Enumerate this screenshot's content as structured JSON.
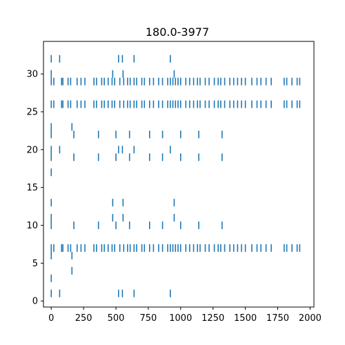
{
  "chart_data": {
    "type": "scatter",
    "marker": "vertical-line",
    "title": "180.0-3977",
    "xlabel": "",
    "ylabel": "",
    "xlim": [
      -60,
      2030
    ],
    "ylim": [
      -0.8,
      34.3
    ],
    "x_ticks": [
      0,
      250,
      500,
      750,
      1000,
      1250,
      1500,
      1750,
      2000
    ],
    "y_ticks": [
      0,
      5,
      10,
      15,
      20,
      25,
      30
    ],
    "grid": false,
    "color": "#1f77b4",
    "rows": [
      {
        "y": 32,
        "x": [
          0,
          65,
          520,
          550,
          640,
          920
        ]
      },
      {
        "y": 30,
        "x": [
          0,
          475,
          555,
          950
        ]
      },
      {
        "y": 29,
        "x": [
          0,
          20,
          80,
          90,
          130,
          150,
          200,
          230,
          260,
          330,
          350,
          390,
          410,
          440,
          470,
          490,
          530,
          560,
          590,
          610,
          640,
          660,
          700,
          720,
          760,
          790,
          830,
          860,
          900,
          920,
          940,
          960,
          980,
          1000,
          1040,
          1070,
          1100,
          1130,
          1150,
          1190,
          1220,
          1260,
          1290,
          1310,
          1340,
          1380,
          1410,
          1440,
          1470,
          1500,
          1550,
          1590,
          1620,
          1660,
          1700,
          1800,
          1820,
          1860,
          1900,
          1920
        ]
      },
      {
        "y": 26,
        "x": [
          0,
          20,
          80,
          90,
          130,
          150,
          200,
          230,
          260,
          330,
          350,
          390,
          410,
          440,
          470,
          490,
          530,
          560,
          590,
          610,
          640,
          660,
          700,
          720,
          760,
          790,
          830,
          860,
          900,
          920,
          940,
          960,
          980,
          1000,
          1040,
          1070,
          1100,
          1130,
          1150,
          1190,
          1220,
          1260,
          1290,
          1310,
          1340,
          1380,
          1410,
          1440,
          1470,
          1500,
          1550,
          1590,
          1620,
          1660,
          1700,
          1800,
          1820,
          1860,
          1900,
          1920
        ]
      },
      {
        "y": 23,
        "x": [
          0,
          160
        ]
      },
      {
        "y": 22,
        "x": [
          0,
          175,
          365,
          500,
          605,
          760,
          860,
          1000,
          1140,
          1320
        ]
      },
      {
        "y": 20,
        "x": [
          0,
          65,
          520,
          550,
          640,
          920
        ]
      },
      {
        "y": 19,
        "x": [
          0,
          175,
          365,
          500,
          605,
          760,
          860,
          1000,
          1140,
          1320
        ]
      },
      {
        "y": 17,
        "x": [
          0
        ]
      },
      {
        "y": 13,
        "x": [
          0,
          475,
          555,
          950
        ]
      },
      {
        "y": 11,
        "x": [
          0,
          475,
          555,
          950
        ]
      },
      {
        "y": 10,
        "x": [
          0,
          175,
          365,
          500,
          605,
          760,
          860,
          1000,
          1140,
          1320
        ]
      },
      {
        "y": 7,
        "x": [
          0,
          20,
          80,
          90,
          130,
          150,
          200,
          230,
          260,
          330,
          350,
          390,
          410,
          440,
          470,
          490,
          530,
          560,
          590,
          610,
          640,
          660,
          700,
          720,
          760,
          790,
          830,
          860,
          900,
          920,
          940,
          960,
          980,
          1000,
          1040,
          1070,
          1100,
          1130,
          1150,
          1190,
          1220,
          1260,
          1290,
          1310,
          1340,
          1380,
          1410,
          1440,
          1470,
          1500,
          1550,
          1590,
          1620,
          1660,
          1700,
          1800,
          1820,
          1860,
          1900,
          1920
        ]
      },
      {
        "y": 6,
        "x": [
          0,
          160
        ]
      },
      {
        "y": 4,
        "x": [
          160
        ]
      },
      {
        "y": 3,
        "x": [
          0
        ]
      },
      {
        "y": 1,
        "x": [
          0,
          65,
          520,
          550,
          640,
          920
        ]
      }
    ]
  }
}
